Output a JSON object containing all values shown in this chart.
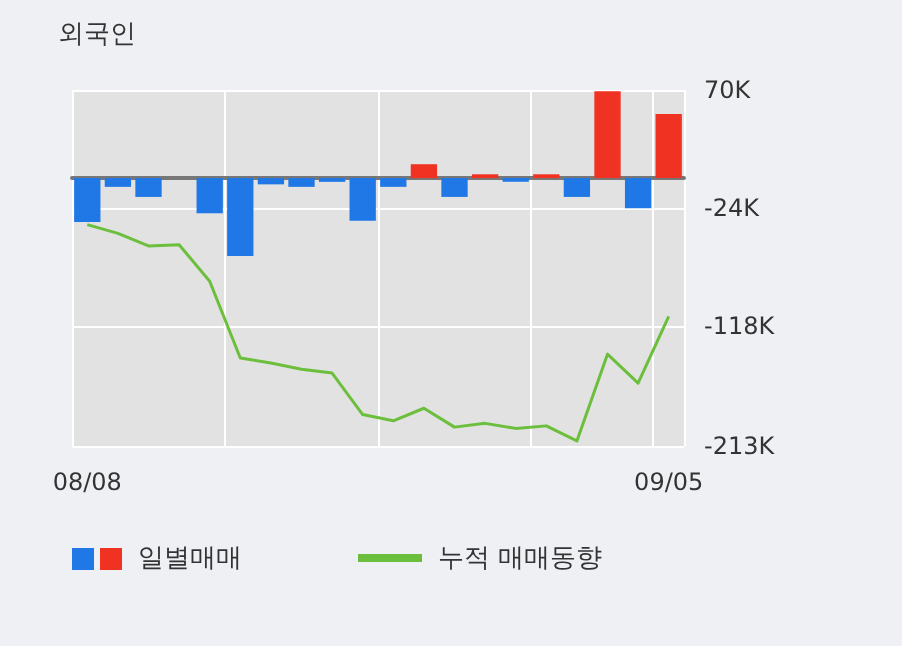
{
  "chart_data": {
    "type": "bar",
    "title": "외국인",
    "categories": [
      "08/08",
      null,
      null,
      null,
      null,
      null,
      null,
      null,
      null,
      null,
      null,
      null,
      null,
      null,
      null,
      null,
      null,
      null,
      null,
      "09/05"
    ],
    "series": [
      {
        "name": "일별매매",
        "colors": [
          "#1f78e6",
          "#1f78e6",
          "#1f78e6",
          "#1f78e6",
          "#1f78e6",
          "#1f78e6",
          "#1f78e6",
          "#1f78e6",
          "#1f78e6",
          "#1f78e6",
          "#1f78e6",
          "#f03222",
          "#1f78e6",
          "#f03222",
          "#1f78e6",
          "#f03222",
          "#1f78e6",
          "#f03222",
          "#1f78e6",
          "#f03222"
        ],
        "values": [
          -35,
          -7,
          -15,
          0,
          -28,
          -62,
          -5,
          -7,
          -3,
          -34,
          -7,
          11,
          -15,
          3,
          -3,
          3,
          -15,
          69,
          -24,
          51
        ]
      },
      {
        "name": "누적 매매동향",
        "type": "line",
        "color": "#6cbf3c",
        "values": [
          -37,
          -44,
          -54,
          -53,
          -82,
          -143,
          -147,
          -152,
          -155,
          -188,
          -193,
          -183,
          -198,
          -195,
          -199,
          -197,
          -209,
          -140,
          -163,
          -110
        ]
      }
    ],
    "ylim": [
      -213,
      70
    ],
    "yticks": [
      {
        "value": 70,
        "label": "70K"
      },
      {
        "value": -24,
        "label": "-24K"
      },
      {
        "value": -118,
        "label": "-118K"
      },
      {
        "value": -213,
        "label": "-213K"
      }
    ],
    "grid": true,
    "legend": "bottom",
    "marker": "none"
  }
}
